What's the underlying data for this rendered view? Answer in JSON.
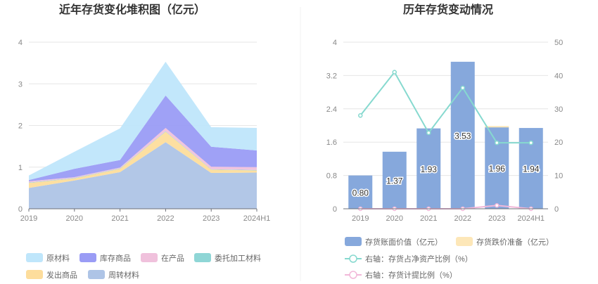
{
  "chart_data": [
    {
      "type": "area",
      "title": "近年存货变化堆积图（亿元）",
      "categories": [
        "2019",
        "2020",
        "2021",
        "2022",
        "2023",
        "2024H1"
      ],
      "ylim": [
        0,
        4
      ],
      "yticks": [
        "0",
        "1",
        "2",
        "3",
        "4"
      ],
      "grid": true,
      "legend": "bottom",
      "series": [
        {
          "name": "周转材料",
          "color": "#aec4e6",
          "values": [
            0.5,
            0.68,
            0.88,
            1.6,
            0.86,
            0.87
          ]
        },
        {
          "name": "发出商品",
          "color": "#fddd9c",
          "values": [
            0.12,
            0.05,
            0.08,
            0.25,
            0.08,
            0.05
          ]
        },
        {
          "name": "委托加工材料",
          "color": "#8fd6d6",
          "values": [
            0.01,
            0.01,
            0.01,
            0.01,
            0.01,
            0.01
          ]
        },
        {
          "name": "在产品",
          "color": "#f0c1dc",
          "values": [
            0.03,
            0.02,
            0.02,
            0.08,
            0.06,
            0.07
          ]
        },
        {
          "name": "库存商品",
          "color": "#9a9cf5",
          "values": [
            0.03,
            0.2,
            0.18,
            0.78,
            0.48,
            0.4
          ]
        },
        {
          "name": "原材料",
          "color": "#bfe6fb",
          "values": [
            0.11,
            0.41,
            0.76,
            0.81,
            0.47,
            0.54
          ]
        }
      ],
      "legend_order": [
        "原材料",
        "库存商品",
        "在产品",
        "委托加工材料",
        "发出商品",
        "周转材料"
      ]
    },
    {
      "type": "bar",
      "title": "历年存货变动情况",
      "categories": [
        "2019",
        "2020",
        "2021",
        "2022",
        "2023",
        "2024H1"
      ],
      "ylim": [
        0,
        4
      ],
      "yticks": [
        "0",
        "0.8",
        "1.6",
        "2.4",
        "3.2",
        "4"
      ],
      "y2lim": [
        0,
        50
      ],
      "y2ticks": [
        "0",
        "10",
        "20",
        "30",
        "40",
        "50"
      ],
      "grid": true,
      "legend": "bottom",
      "bars": [
        {
          "name": "存货账面价值（亿元）",
          "color": "#86a8dc",
          "values": [
            0.8,
            1.37,
            1.93,
            3.53,
            1.96,
            1.94
          ],
          "labels": [
            "0.80",
            "1.37",
            "1.93",
            "3.53",
            "1.96",
            "1.94"
          ]
        },
        {
          "name": "存货跌价准备（亿元）",
          "color": "#fde7b8",
          "values": [
            0,
            0,
            0,
            0,
            0.01,
            0
          ]
        }
      ],
      "lines": [
        {
          "name": "右轴：存货占净资产比例（%）",
          "color": "#86d9cf",
          "values": [
            28.0,
            41.0,
            22.8,
            36.3,
            19.8,
            19.8
          ]
        },
        {
          "name": "右轴：存货计提比例（%）",
          "color": "#f2b8d9",
          "values": [
            0,
            0,
            0,
            0,
            1.0,
            0
          ]
        }
      ]
    }
  ]
}
